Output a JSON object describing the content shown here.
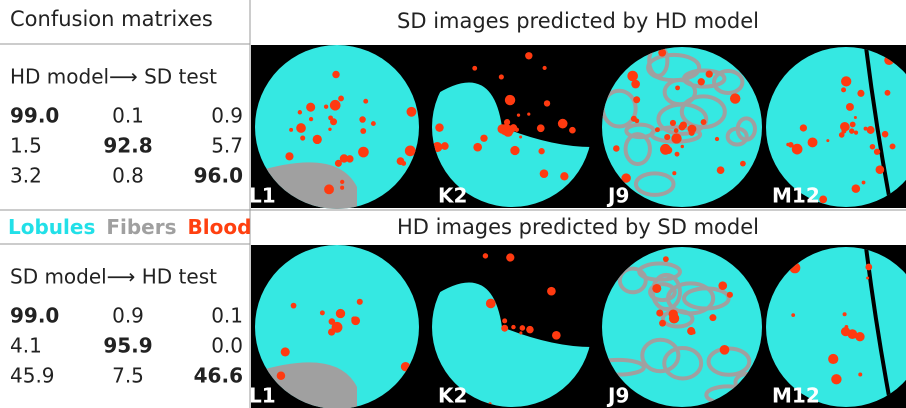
{
  "header": {
    "left": "Confusion matrixes",
    "top_right": "SD images predicted by HD model",
    "bottom_right": "HD images predicted by SD model"
  },
  "legend": [
    "Lobules",
    "Fibers",
    "Blood"
  ],
  "panels": [
    {
      "title": "HD model⟶ SD test",
      "matrix": [
        [
          "99.0",
          "0.1",
          "0.9"
        ],
        [
          "1.5",
          "92.8",
          "5.7"
        ],
        [
          "3.2",
          "0.8",
          "96.0"
        ]
      ],
      "labels": [
        "L1",
        "K2",
        "J9",
        "M12"
      ]
    },
    {
      "title": "SD model⟶ HD test",
      "matrix": [
        [
          "99.0",
          "0.9",
          "0.1"
        ],
        [
          "4.1",
          "95.9",
          "0.0"
        ],
        [
          "45.9",
          "7.5",
          "46.6"
        ]
      ],
      "labels": [
        "L1",
        "K2",
        "J9",
        "M12"
      ]
    }
  ]
}
